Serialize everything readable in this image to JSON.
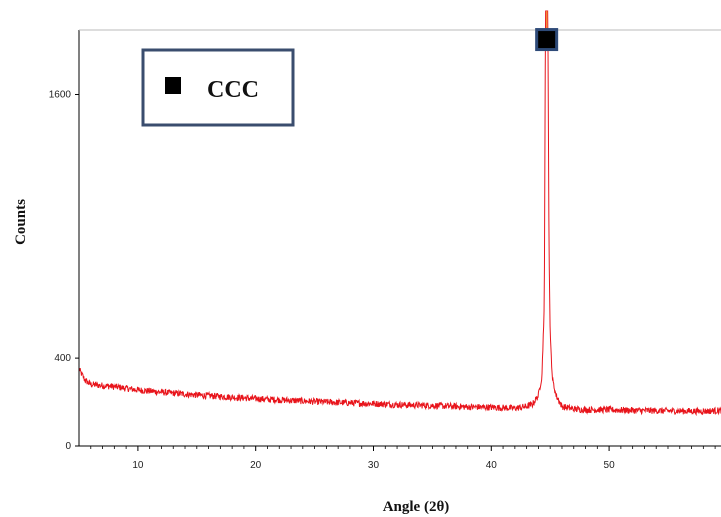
{
  "chart_data": {
    "type": "line",
    "xlabel": "Angle (2θ)",
    "ylabel": "Counts",
    "xlim": [
      5,
      59.5
    ],
    "ylim": [
      0,
      1980
    ],
    "x_ticks": [
      10,
      20,
      30,
      40,
      50
    ],
    "y_ticks": [
      0,
      400,
      1600
    ],
    "y_tick_labels": [
      "0",
      "400",
      "1600"
    ],
    "grid": false,
    "legend": {
      "placement": "top-left",
      "entries": [
        {
          "label": "CCC",
          "marker": "filled-square"
        }
      ]
    },
    "series": [
      {
        "color": "#e8141b",
        "x": [
          5,
          5.5,
          6,
          8,
          10,
          12,
          15,
          18,
          20,
          22,
          25,
          28,
          30,
          32,
          35,
          38,
          40,
          42,
          43,
          43.5,
          44,
          44.3,
          44.5,
          44.6,
          44.7,
          44.8,
          44.9,
          45.0,
          45.2,
          45.5,
          46,
          47,
          48,
          50,
          52,
          55,
          58,
          59.5
        ],
        "y": [
          350,
          300,
          280,
          270,
          255,
          245,
          232,
          222,
          215,
          210,
          202,
          196,
          193,
          188,
          184,
          178,
          176,
          172,
          180,
          190,
          230,
          320,
          650,
          1980,
          1980,
          1980,
          900,
          500,
          300,
          230,
          180,
          168,
          165,
          165,
          162,
          160,
          158,
          162
        ]
      }
    ],
    "peak_marker": {
      "x": 44.7,
      "y": 1850,
      "shape": "filled-square"
    },
    "colors": {
      "line": "#e8141b",
      "axis": "#000000",
      "legend_border": "#3a4d6e",
      "marker_border": "#2e4a78"
    }
  }
}
